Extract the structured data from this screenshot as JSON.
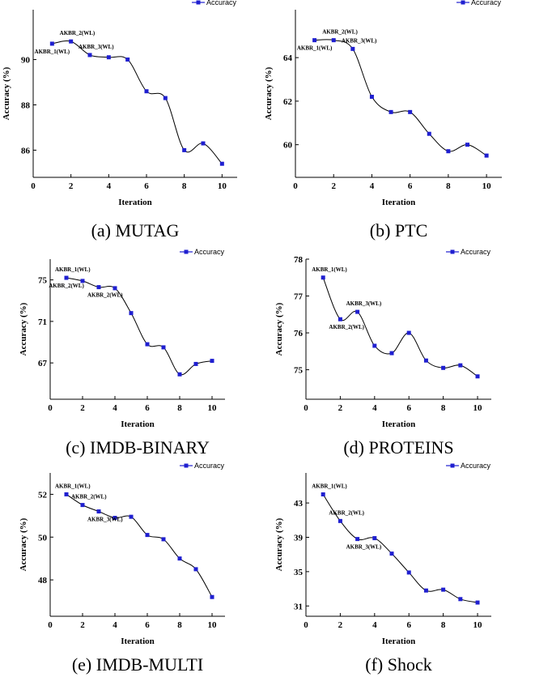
{
  "chart_data": [
    {
      "type": "line",
      "caption": "(a) MUTAG",
      "xlabel": "Iteration",
      "ylabel": "Accuracy (%)",
      "legend": "Accuracy",
      "legend_position": "top-right",
      "xlim": [
        0,
        10.8
      ],
      "ylim": [
        84.8,
        92.2
      ],
      "xticks": [
        0,
        2,
        4,
        6,
        8,
        10
      ],
      "yticks": [
        86,
        88,
        90
      ],
      "series": [
        {
          "name": "Accuracy",
          "x": [
            1,
            2,
            3,
            4,
            5,
            6,
            7,
            8,
            9,
            10
          ],
          "y": [
            90.7,
            90.8,
            90.2,
            90.1,
            90.0,
            88.6,
            88.3,
            86.0,
            86.3,
            85.4
          ]
        }
      ],
      "annotations": [
        {
          "text": "AKBR_1(WL)",
          "index": 0,
          "side": "below"
        },
        {
          "text": "AKBR_2(WL)",
          "index": 1,
          "side": "above"
        },
        {
          "text": "AKBR_3(WL)",
          "index": 2,
          "side": "above"
        }
      ]
    },
    {
      "type": "line",
      "caption": "(b) PTC",
      "xlabel": "Iteration",
      "ylabel": "Accuracy (%)",
      "legend": "Accuracy",
      "legend_position": "top-right",
      "xlim": [
        0,
        10.8
      ],
      "ylim": [
        58.5,
        66.2
      ],
      "xticks": [
        0,
        2,
        4,
        6,
        8,
        10
      ],
      "yticks": [
        60,
        62,
        64
      ],
      "series": [
        {
          "name": "Accuracy",
          "x": [
            1,
            2,
            3,
            4,
            5,
            6,
            7,
            8,
            9,
            10
          ],
          "y": [
            64.8,
            64.8,
            64.4,
            62.2,
            61.5,
            61.5,
            60.5,
            59.7,
            60.0,
            59.5
          ]
        }
      ],
      "annotations": [
        {
          "text": "AKBR_1(WL)",
          "index": 0,
          "side": "below"
        },
        {
          "text": "AKBR_2(WL)",
          "index": 1,
          "side": "above"
        },
        {
          "text": "AKBR_3(WL)",
          "index": 2,
          "side": "above"
        }
      ]
    },
    {
      "type": "line",
      "caption": "(c) IMDB-BINARY",
      "xlabel": "Iteration",
      "ylabel": "Accuracy (%)",
      "legend": "Accuracy",
      "legend_position": "top-right",
      "xlim": [
        0,
        10.8
      ],
      "ylim": [
        63.5,
        77.0
      ],
      "xticks": [
        0,
        2,
        4,
        6,
        8,
        10
      ],
      "yticks": [
        67,
        71,
        75
      ],
      "series": [
        {
          "name": "Accuracy",
          "x": [
            1,
            2,
            3,
            4,
            5,
            6,
            7,
            8,
            9,
            10
          ],
          "y": [
            75.2,
            74.9,
            74.3,
            74.2,
            71.8,
            68.8,
            68.5,
            65.9,
            66.9,
            67.2
          ]
        }
      ],
      "annotations": [
        {
          "text": "AKBR_1(WL)",
          "index": 0,
          "side": "above"
        },
        {
          "text": "AKBR_2(WL)",
          "index": 0,
          "side": "below"
        },
        {
          "text": "AKBR_2(WL)",
          "index": 2,
          "side": "below"
        }
      ]
    },
    {
      "type": "line",
      "caption": "(d) PROTEINS",
      "xlabel": "Iteration",
      "ylabel": "Accuracy (%)",
      "legend": "Accuracy",
      "legend_position": "top-right",
      "xlim": [
        0,
        10.8
      ],
      "ylim": [
        74.2,
        78.0
      ],
      "xticks": [
        0,
        2,
        4,
        6,
        8,
        10
      ],
      "yticks": [
        75,
        76,
        77,
        78
      ],
      "series": [
        {
          "name": "Accuracy",
          "x": [
            1,
            2,
            3,
            4,
            5,
            6,
            7,
            8,
            9,
            10
          ],
          "y": [
            77.5,
            76.37,
            76.57,
            75.65,
            75.45,
            76.0,
            75.25,
            75.05,
            75.12,
            74.82
          ]
        }
      ],
      "annotations": [
        {
          "text": "AKBR_1(WL)",
          "index": 0,
          "side": "above"
        },
        {
          "text": "AKBR_2(WL)",
          "index": 1,
          "side": "below"
        },
        {
          "text": "AKBR_3(WL)",
          "index": 2,
          "side": "above"
        }
      ]
    },
    {
      "type": "line",
      "caption": "(e) IMDB-MULTI",
      "xlabel": "Iteration",
      "ylabel": "Accuracy (%)",
      "legend": "Accuracy",
      "legend_position": "top-right",
      "xlim": [
        0,
        10.8
      ],
      "ylim": [
        46.3,
        53.0
      ],
      "xticks": [
        0,
        2,
        4,
        6,
        8,
        10
      ],
      "yticks": [
        48,
        50,
        52
      ],
      "series": [
        {
          "name": "Accuracy",
          "x": [
            1,
            2,
            3,
            4,
            5,
            6,
            7,
            8,
            9,
            10
          ],
          "y": [
            52.0,
            51.5,
            51.2,
            50.9,
            50.95,
            50.1,
            49.9,
            49.0,
            48.5,
            47.2
          ]
        }
      ],
      "annotations": [
        {
          "text": "AKBR_1(WL)",
          "index": 0,
          "side": "above"
        },
        {
          "text": "AKBR_2(WL)",
          "index": 1,
          "side": "above"
        },
        {
          "text": "AKBR_3(WL)",
          "index": 2,
          "side": "below"
        }
      ]
    },
    {
      "type": "line",
      "caption": "(f) Shock",
      "xlabel": "Iteration",
      "ylabel": "Accuracy (%)",
      "legend": "Accuracy",
      "legend_position": "top-right",
      "xlim": [
        0,
        10.8
      ],
      "ylim": [
        29.8,
        46.5
      ],
      "xticks": [
        0,
        2,
        4,
        6,
        8,
        10
      ],
      "yticks": [
        31,
        35,
        39,
        43
      ],
      "series": [
        {
          "name": "Accuracy",
          "x": [
            1,
            2,
            3,
            4,
            5,
            6,
            7,
            8,
            9,
            10
          ],
          "y": [
            44.0,
            40.9,
            38.8,
            38.9,
            37.1,
            34.9,
            32.8,
            32.9,
            31.8,
            31.4
          ]
        }
      ],
      "annotations": [
        {
          "text": "AKBR_1(WL)",
          "index": 0,
          "side": "above"
        },
        {
          "text": "AKBR_2(WL)",
          "index": 1,
          "side": "above"
        },
        {
          "text": "AKBR_3(WL)",
          "index": 2,
          "side": "below"
        }
      ]
    }
  ],
  "colors": {
    "marker": "#1f1fd0",
    "line": "#000000"
  }
}
